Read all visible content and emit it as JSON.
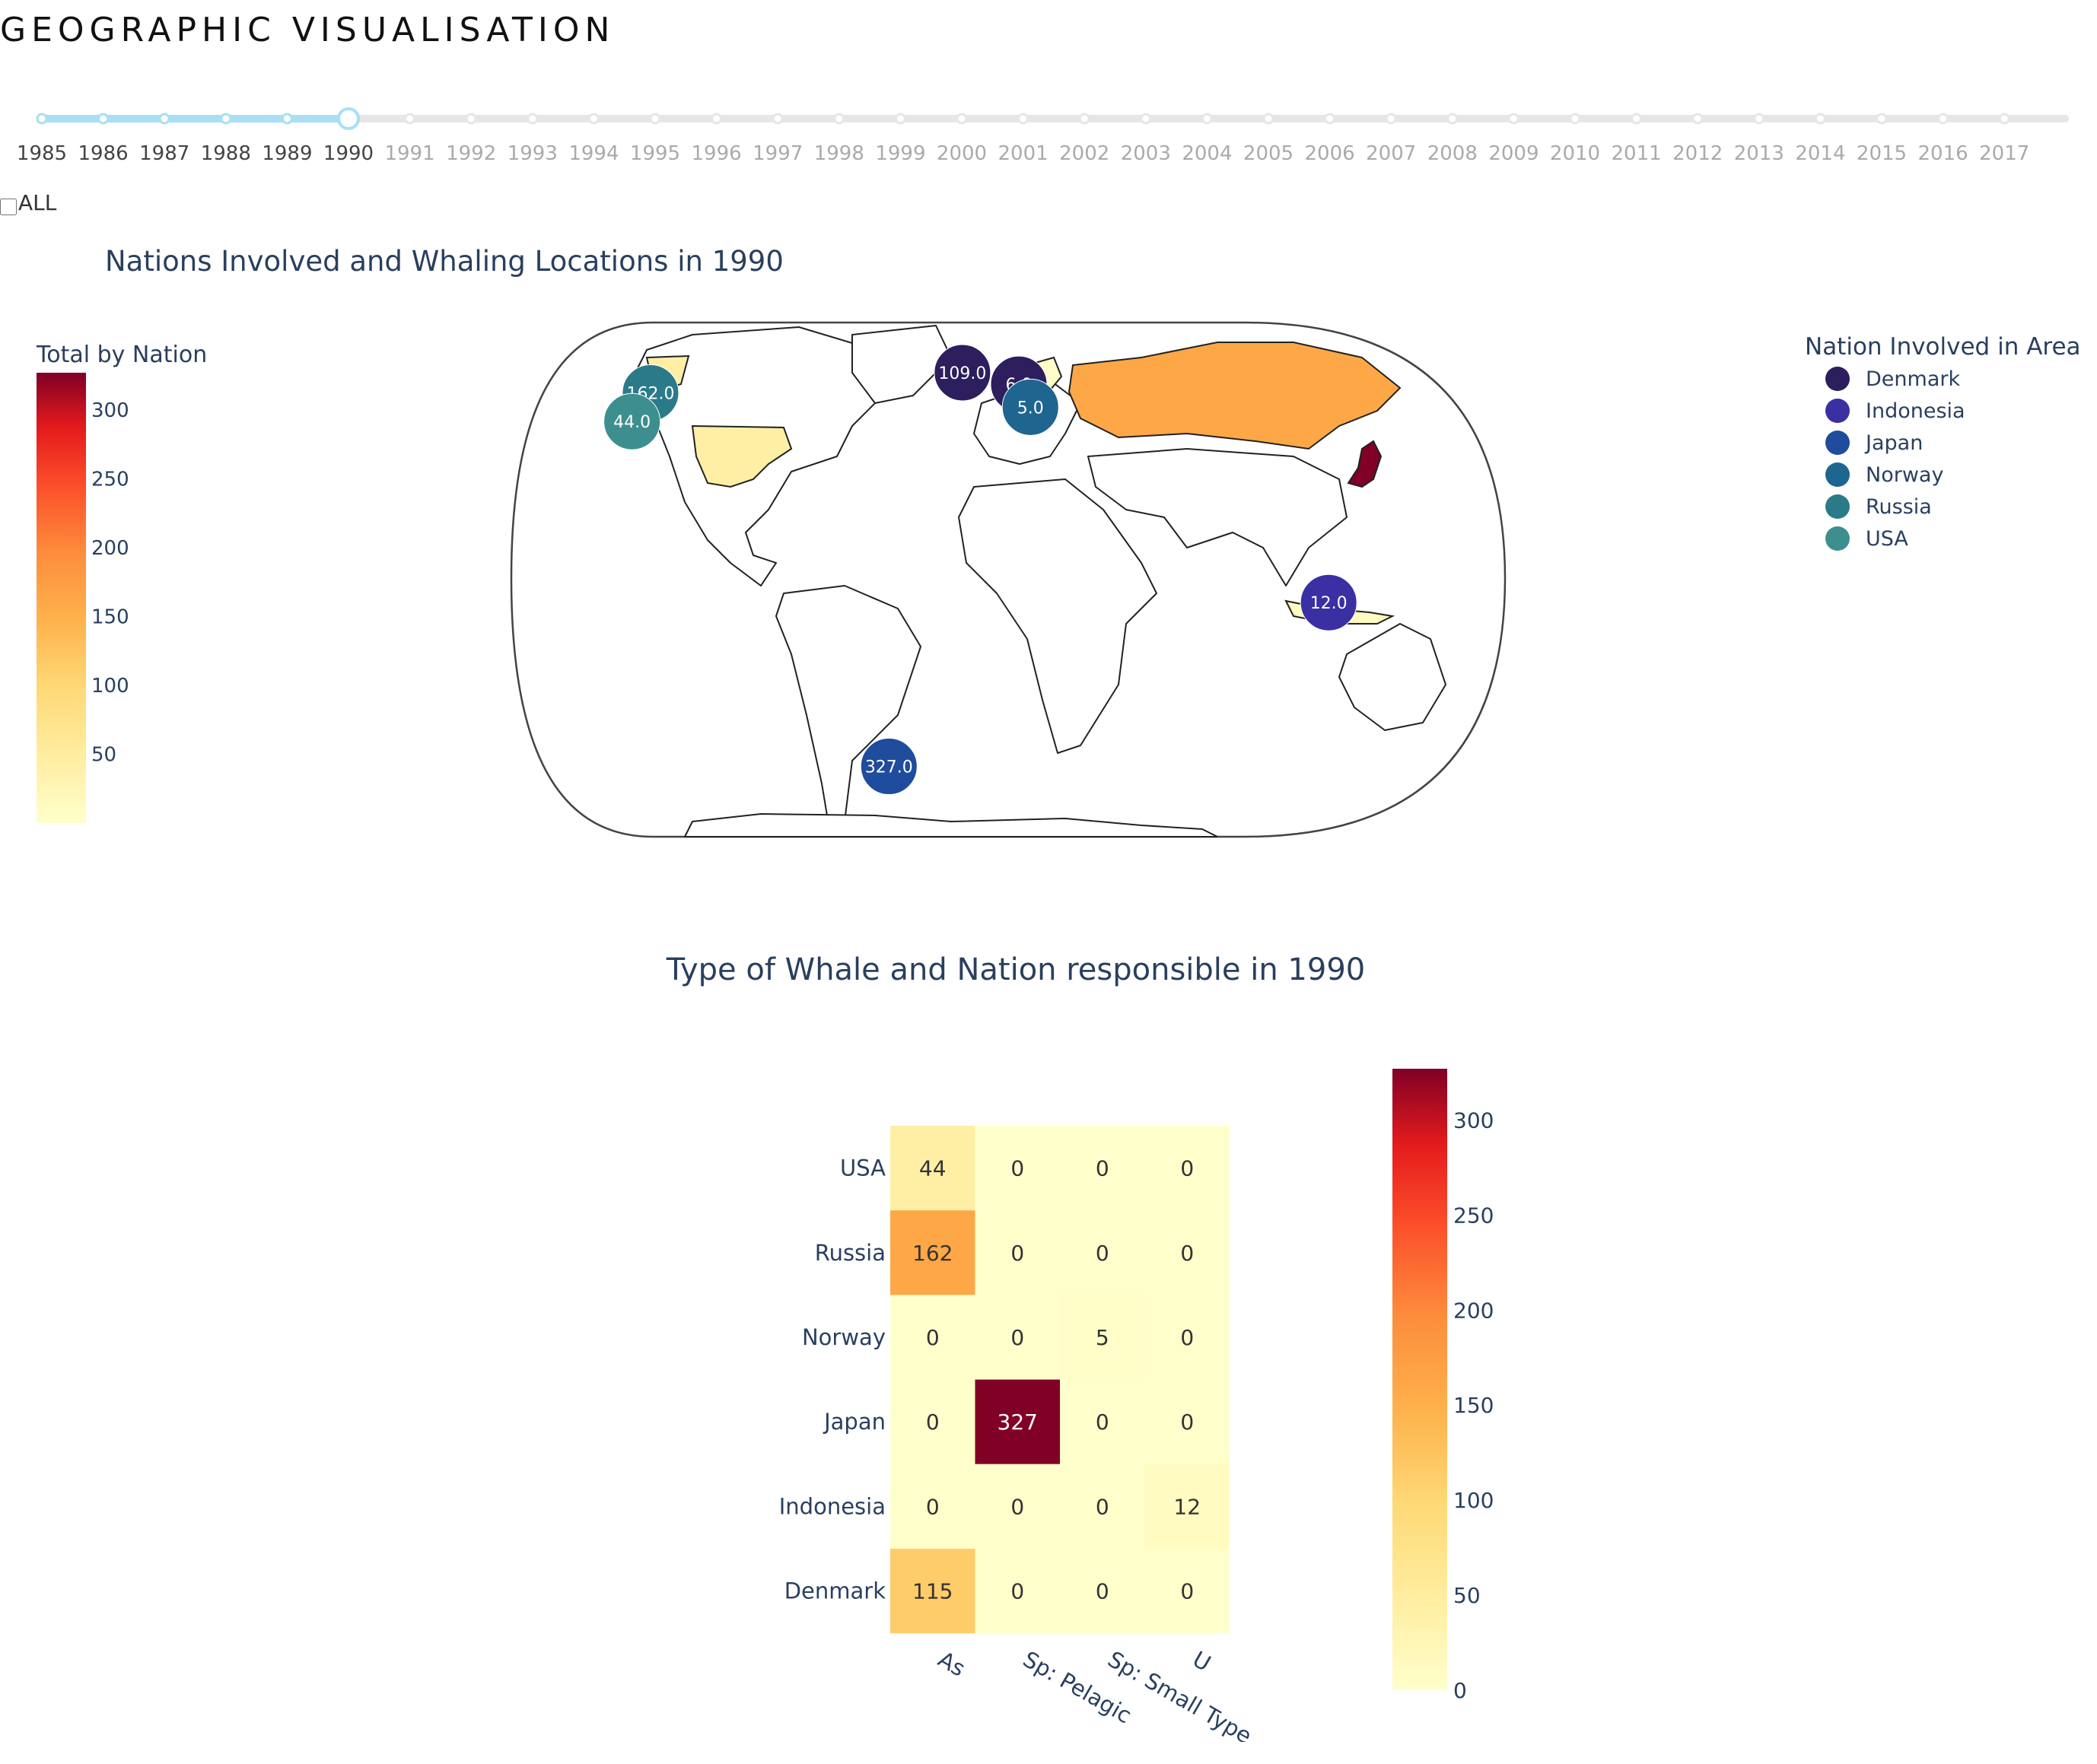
{
  "page": {
    "title": "GEOGRAPHIC VISUALISATION"
  },
  "slider": {
    "years": [
      "1985",
      "1986",
      "1987",
      "1988",
      "1989",
      "1990",
      "1991",
      "1992",
      "1993",
      "1994",
      "1995",
      "1996",
      "1997",
      "1998",
      "1999",
      "2000",
      "2001",
      "2002",
      "2003",
      "2004",
      "2005",
      "2006",
      "2007",
      "2008",
      "2009",
      "2010",
      "2011",
      "2012",
      "2013",
      "2014",
      "2015",
      "2016",
      "2017"
    ],
    "selected": "1990",
    "active_color": "#a8dff5",
    "inactive_color": "#e6e6e6"
  },
  "all_checkbox": {
    "label": "ALL",
    "checked": false
  },
  "chart_data": [
    {
      "type": "map",
      "title": "Nations Involved and Whaling Locations in 1990",
      "colorbar": {
        "title": "Total by Nation",
        "ticks": [
          50,
          100,
          150,
          200,
          250,
          300
        ],
        "range": [
          0,
          327
        ]
      },
      "legend": {
        "title": "Nation Involved in Area",
        "placement": "top-right",
        "items": [
          {
            "name": "Denmark",
            "color": "#2d1e5e"
          },
          {
            "name": "Indonesia",
            "color": "#3a2fa3"
          },
          {
            "name": "Japan",
            "color": "#1f4c9c"
          },
          {
            "name": "Norway",
            "color": "#1e6590"
          },
          {
            "name": "Russia",
            "color": "#2a7a8a"
          },
          {
            "name": "USA",
            "color": "#3c8f8e"
          }
        ]
      },
      "choropleth": [
        {
          "region": "USA",
          "value": 44
        },
        {
          "region": "Russia",
          "value": 162
        },
        {
          "region": "Norway",
          "value": 5
        },
        {
          "region": "Japan",
          "value": 327
        },
        {
          "region": "Indonesia",
          "value": 12
        },
        {
          "region": "Denmark",
          "value": 115
        }
      ],
      "bubbles": [
        {
          "nation": "Denmark",
          "label": "109.0",
          "lon": -22,
          "lat": 72
        },
        {
          "nation": "Denmark",
          "label": "6.0",
          "lon": 5,
          "lat": 68
        },
        {
          "nation": "Russia",
          "label": "162.0",
          "lon": -165,
          "lat": 65
        },
        {
          "nation": "USA",
          "label": "44.0",
          "lon": -165,
          "lat": 55
        },
        {
          "nation": "Norway",
          "label": "5.0",
          "lon": 10,
          "lat": 60
        },
        {
          "nation": "Indonesia",
          "label": "12.0",
          "lon": 125,
          "lat": -8
        },
        {
          "nation": "Japan",
          "label": "327.0",
          "lon": -55,
          "lat": -65
        }
      ]
    },
    {
      "type": "heatmap",
      "title": "Type of Whale and Nation responsible in 1990",
      "x": [
        "As",
        "Sp: Pelagic",
        "Sp: Small Type",
        "U"
      ],
      "y": [
        "USA",
        "Russia",
        "Norway",
        "Japan",
        "Indonesia",
        "Denmark"
      ],
      "z": [
        [
          44,
          0,
          0,
          0
        ],
        [
          162,
          0,
          0,
          0
        ],
        [
          0,
          0,
          5,
          0
        ],
        [
          0,
          327,
          0,
          0
        ],
        [
          0,
          0,
          0,
          12
        ],
        [
          115,
          0,
          0,
          0
        ]
      ],
      "colorbar": {
        "ticks": [
          0,
          50,
          100,
          150,
          200,
          250,
          300
        ],
        "range": [
          0,
          327
        ]
      }
    }
  ]
}
